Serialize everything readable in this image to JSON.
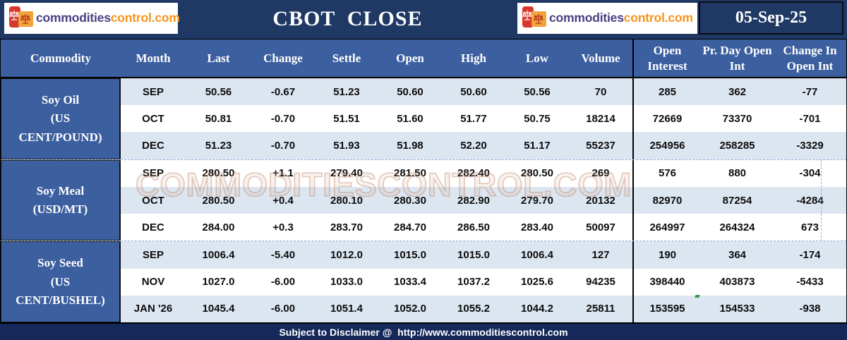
{
  "header": {
    "title": "CBOT  CLOSE",
    "date": "05-Sep-25"
  },
  "brand": {
    "name_part1": "commodities",
    "name_part2": "control.com",
    "icon": "balance-scales-icon"
  },
  "watermark": "COMMODITIESCONTROL.COM",
  "table": {
    "columns": [
      {
        "key": "commodity",
        "label": "Commodity"
      },
      {
        "key": "month",
        "label": "Month"
      },
      {
        "key": "last",
        "label": "Last"
      },
      {
        "key": "change",
        "label": "Change"
      },
      {
        "key": "settle",
        "label": "Settle"
      },
      {
        "key": "open",
        "label": "Open"
      },
      {
        "key": "high",
        "label": "High"
      },
      {
        "key": "low",
        "label": "Low"
      },
      {
        "key": "volume",
        "label": "Volume"
      },
      {
        "key": "oi",
        "label": "Open Interest"
      },
      {
        "key": "prday_oi",
        "label": "Pr. Day Open Int"
      },
      {
        "key": "chg_oi",
        "label": "Change In Open Int"
      }
    ],
    "groups": [
      {
        "name": "Soy Oil",
        "unit": "(US\nCENT/POUND)",
        "rows": [
          {
            "month": "SEP",
            "last": "50.56",
            "change": "-0.67",
            "settle": "51.23",
            "open": "50.60",
            "high": "50.60",
            "low": "50.56",
            "volume": "70",
            "oi": "285",
            "prday_oi": "362",
            "chg_oi": "-77"
          },
          {
            "month": "OCT",
            "last": "50.81",
            "change": "-0.70",
            "settle": "51.51",
            "open": "51.60",
            "high": "51.77",
            "low": "50.75",
            "volume": "18214",
            "oi": "72669",
            "prday_oi": "73370",
            "chg_oi": "-701"
          },
          {
            "month": "DEC",
            "last": "51.23",
            "change": "-0.70",
            "settle": "51.93",
            "open": "51.98",
            "high": "52.20",
            "low": "51.17",
            "volume": "55237",
            "oi": "254956",
            "prday_oi": "258285",
            "chg_oi": "-3329"
          }
        ]
      },
      {
        "name": "Soy Meal",
        "unit": "(USD/MT)",
        "rows": [
          {
            "month": "SEP",
            "last": "280.50",
            "change": "+1.1",
            "settle": "279.40",
            "open": "281.50",
            "high": "282.40",
            "low": "280.50",
            "volume": "269",
            "oi": "576",
            "prday_oi": "880",
            "chg_oi": "-304"
          },
          {
            "month": "OCT",
            "last": "280.50",
            "change": "+0.4",
            "settle": "280.10",
            "open": "280.30",
            "high": "282.90",
            "low": "279.70",
            "volume": "20132",
            "oi": "82970",
            "prday_oi": "87254",
            "chg_oi": "-4284"
          },
          {
            "month": "DEC",
            "last": "284.00",
            "change": "+0.3",
            "settle": "283.70",
            "open": "284.70",
            "high": "286.50",
            "low": "283.40",
            "volume": "50097",
            "oi": "264997",
            "prday_oi": "264324",
            "chg_oi": "673"
          }
        ]
      },
      {
        "name": "Soy Seed",
        "unit": "(US\nCENT/BUSHEL)",
        "rows": [
          {
            "month": "SEP",
            "last": "1006.4",
            "change": "-5.40",
            "settle": "1012.0",
            "open": "1015.0",
            "high": "1015.0",
            "low": "1006.4",
            "volume": "127",
            "oi": "190",
            "prday_oi": "364",
            "chg_oi": "-174"
          },
          {
            "month": "NOV",
            "last": "1027.0",
            "change": "-6.00",
            "settle": "1033.0",
            "open": "1033.4",
            "high": "1037.2",
            "low": "1025.6",
            "volume": "94235",
            "oi": "398440",
            "prday_oi": "403873",
            "chg_oi": "-5433"
          },
          {
            "month": "JAN '26",
            "last": "1045.4",
            "change": "-6.00",
            "settle": "1051.4",
            "open": "1052.0",
            "high": "1055.2",
            "low": "1044.2",
            "volume": "25811",
            "oi": "153595",
            "prday_oi": "154533",
            "chg_oi": "-938"
          }
        ]
      }
    ]
  },
  "footer": {
    "disclaimer": "Subject to Disclaimer @  http://www.commoditiescontrol.com"
  },
  "colors": {
    "navy": "#1F3864",
    "header_blue": "#3C5F9F",
    "light_row": "#DCE6F1",
    "white_row": "#FFFFFF",
    "footer_navy": "#14285A",
    "logo_purple": "#4A4083",
    "logo_orange": "#F7941D",
    "logo_red": "#D6392B",
    "logo_amber": "#F2A33C",
    "watermark_stroke": "rgba(196,137,108,0.45)"
  }
}
